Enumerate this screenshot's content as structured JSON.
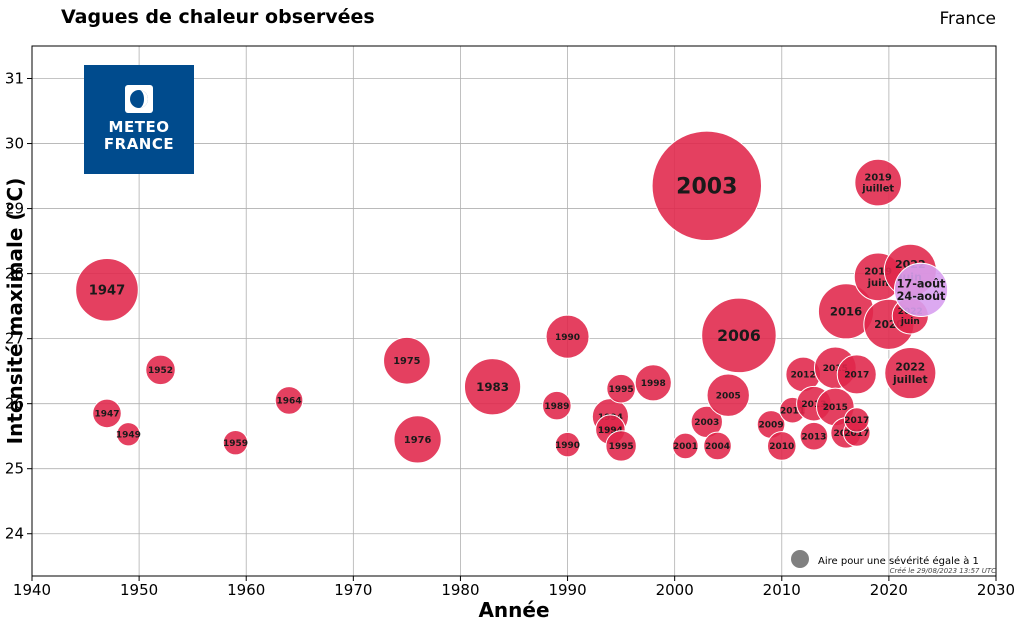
{
  "header": {
    "title": "Vagues de chaleur observées",
    "region": "France"
  },
  "logo": {
    "line1": "METEO",
    "line2": "FRANCE",
    "color": "#004b8d"
  },
  "footer": {
    "legend_label": "Aire pour une sévérité égale à 1",
    "created": "Créé le 29/08/2023 13:57 UTC"
  },
  "colors": {
    "bubble": "#e0264a",
    "bubble_edge": "#ffffff",
    "highlight": "#d8a0f0"
  },
  "chart_data": {
    "type": "scatter",
    "title": "Vagues de chaleur observées",
    "xlabel": "Année",
    "ylabel": "Intensité maximale (°C)",
    "xlim": [
      1940,
      2030
    ],
    "ylim": [
      23.35,
      31.5
    ],
    "xticks": [
      1940,
      1950,
      1960,
      1970,
      1980,
      1990,
      2000,
      2010,
      2020,
      2030
    ],
    "yticks": [
      24,
      25,
      26,
      27,
      28,
      29,
      30,
      31
    ],
    "grid": true,
    "points": [
      {
        "x": 1947,
        "y": 27.75,
        "label": "1947",
        "severity": 3.6
      },
      {
        "x": 1947,
        "y": 25.85,
        "label": "1947",
        "severity": 0.75
      },
      {
        "x": 1949,
        "y": 25.53,
        "label": "1949",
        "severity": 0.5
      },
      {
        "x": 1952,
        "y": 26.52,
        "label": "1952",
        "severity": 0.8
      },
      {
        "x": 1959,
        "y": 25.4,
        "label": "1959",
        "severity": 0.55
      },
      {
        "x": 1964,
        "y": 26.05,
        "label": "1964",
        "severity": 0.7
      },
      {
        "x": 1975,
        "y": 26.66,
        "label": "1975",
        "severity": 2.0
      },
      {
        "x": 1976,
        "y": 25.45,
        "label": "1976",
        "severity": 2.05
      },
      {
        "x": 1983,
        "y": 26.26,
        "label": "1983",
        "severity": 2.9
      },
      {
        "x": 1989,
        "y": 25.97,
        "label": "1989",
        "severity": 0.75
      },
      {
        "x": 1990,
        "y": 27.03,
        "label": "1990",
        "severity": 1.7
      },
      {
        "x": 1990,
        "y": 25.37,
        "label": "1990",
        "severity": 0.55
      },
      {
        "x": 1994,
        "y": 25.8,
        "label": "1994",
        "severity": 1.2
      },
      {
        "x": 1994,
        "y": 25.6,
        "label": "1994",
        "severity": 0.8
      },
      {
        "x": 1995,
        "y": 26.23,
        "label": "1995",
        "severity": 0.75
      },
      {
        "x": 1995,
        "y": 25.35,
        "label": "1995",
        "severity": 0.85
      },
      {
        "x": 1998,
        "y": 26.32,
        "label": "1998",
        "severity": 1.2
      },
      {
        "x": 2001,
        "y": 25.35,
        "label": "2001",
        "severity": 0.6
      },
      {
        "x": 2003,
        "y": 29.35,
        "label": "2003",
        "severity": 11.0
      },
      {
        "x": 2003,
        "y": 25.72,
        "label": "2003",
        "severity": 0.9
      },
      {
        "x": 2004,
        "y": 25.35,
        "label": "2004",
        "severity": 0.7
      },
      {
        "x": 2005,
        "y": 26.13,
        "label": "2005",
        "severity": 1.65
      },
      {
        "x": 2006,
        "y": 27.05,
        "label": "2006",
        "severity": 5.1
      },
      {
        "x": 2009,
        "y": 25.68,
        "label": "2009",
        "severity": 0.7
      },
      {
        "x": 2010,
        "y": 25.35,
        "label": "2010",
        "severity": 0.75
      },
      {
        "x": 2011,
        "y": 25.9,
        "label": "2011",
        "severity": 0.6
      },
      {
        "x": 2012,
        "y": 26.45,
        "label": "2012",
        "severity": 1.1
      },
      {
        "x": 2013,
        "y": 25.5,
        "label": "2013",
        "severity": 0.7
      },
      {
        "x": 2013,
        "y": 26.0,
        "label": "2013",
        "severity": 1.1
      },
      {
        "x": 2015,
        "y": 26.55,
        "label": "2015",
        "severity": 1.6
      },
      {
        "x": 2015,
        "y": 25.95,
        "label": "2015",
        "severity": 1.3
      },
      {
        "x": 2016,
        "y": 25.55,
        "label": "2016",
        "severity": 0.85
      },
      {
        "x": 2016,
        "y": 27.42,
        "label": "2016",
        "severity": 2.8
      },
      {
        "x": 2017,
        "y": 26.45,
        "label": "2017",
        "severity": 1.4
      },
      {
        "x": 2017,
        "y": 25.55,
        "label": "2017",
        "severity": 0.65
      },
      {
        "x": 2017,
        "y": 25.75,
        "label": "2017",
        "severity": 0.55
      },
      {
        "x": 2019,
        "y": 29.4,
        "label": "2019\njuillet",
        "severity": 2.0
      },
      {
        "x": 2019,
        "y": 27.95,
        "label": "2019\njuin",
        "severity": 2.1
      },
      {
        "x": 2020,
        "y": 27.22,
        "label": "2020",
        "severity": 2.3
      },
      {
        "x": 2022,
        "y": 28.05,
        "label": "2022\njuin",
        "severity": 2.5
      },
      {
        "x": 2022,
        "y": 27.35,
        "label": "2022\njuin",
        "severity": 1.2
      },
      {
        "x": 2022,
        "y": 26.47,
        "label": "2022\njuillet",
        "severity": 2.4
      },
      {
        "x": 2023,
        "y": 27.75,
        "label": "17-août\n24-août",
        "severity": 2.6,
        "highlight": true
      }
    ]
  }
}
